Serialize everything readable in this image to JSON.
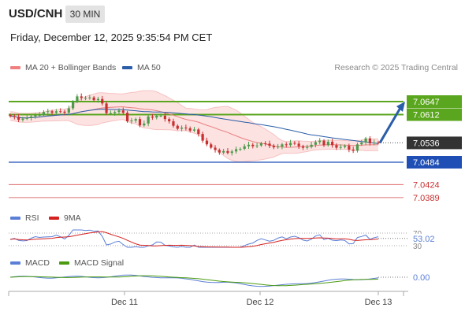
{
  "header": {
    "symbol": "USD/CNH",
    "interval": "30 MIN",
    "datetime": "Friday, December 12, 2025 9:35:54 PM CET"
  },
  "legend_main": [
    {
      "label": "MA 20 + Bollinger Bands",
      "color": "#f08080"
    },
    {
      "label": "MA 50",
      "color": "#2a5ea8"
    }
  ],
  "copyright": "Research © 2025 Trading Central",
  "colors": {
    "resistance": "#5aa61e",
    "support": "#1f4fb5",
    "minor_support": "#e07070",
    "current": "#333333",
    "bull": "#4a9b4a",
    "bear": "#c83030",
    "bands": "#fde2e2",
    "arrow": "#2a5ea8"
  },
  "price_levels": [
    {
      "name": "resistance-2",
      "value": "7.0647",
      "type": "resistance"
    },
    {
      "name": "resistance-1",
      "value": "7.0612",
      "type": "resistance"
    },
    {
      "name": "current-price",
      "value": "7.0536",
      "type": "current"
    },
    {
      "name": "support-1",
      "value": "7.0484",
      "type": "support"
    },
    {
      "name": "support-2",
      "value": "7.0424",
      "type": "minor_support"
    },
    {
      "name": "support-3",
      "value": "7.0389",
      "type": "minor_support"
    }
  ],
  "rsi": {
    "legend": [
      {
        "label": "RSI",
        "color": "#5b7fd6"
      },
      {
        "label": "9MA",
        "color": "#d62020"
      }
    ],
    "levels": [
      "70",
      "30"
    ],
    "value": "53.02"
  },
  "macd": {
    "legend": [
      {
        "label": "MACD",
        "color": "#5b7fd6"
      },
      {
        "label": "MACD Signal",
        "color": "#4a9b10"
      }
    ],
    "value": "0.00"
  },
  "xaxis": {
    "labels": [
      "Dec 11",
      "Dec 12",
      "Dec 13"
    ]
  },
  "chart_data": {
    "type": "candlestick",
    "price_range": [
      7.037,
      7.07
    ],
    "closes": [
      7.0608,
      7.0606,
      7.0598,
      7.0601,
      7.0603,
      7.0607,
      7.061,
      7.0611,
      7.0619,
      7.0621,
      7.0617,
      7.0621,
      7.062,
      7.0617,
      7.0629,
      7.0647,
      7.0661,
      7.0657,
      7.0657,
      7.0658,
      7.0651,
      7.0654,
      7.0642,
      7.0616,
      7.0616,
      7.0619,
      7.0623,
      7.0617,
      7.0594,
      7.0596,
      7.06,
      7.0583,
      7.0588,
      7.0607,
      7.0604,
      7.0609,
      7.0609,
      7.06,
      7.0594,
      7.0582,
      7.0574,
      7.0577,
      7.0575,
      7.0569,
      7.0572,
      7.056,
      7.0542,
      7.0532,
      7.0523,
      7.0517,
      7.051,
      7.0514,
      7.0509,
      7.0513,
      7.0519,
      7.052,
      7.0527,
      7.0531,
      7.0527,
      7.0529,
      7.0535,
      7.0534,
      7.0528,
      7.0524,
      7.0526,
      7.0532,
      7.053,
      7.0536,
      7.0534,
      7.0527,
      7.0523,
      7.0525,
      7.0531,
      7.0538,
      7.0542,
      7.053,
      7.0539,
      7.053,
      7.0523,
      7.0525,
      7.0528,
      7.0518,
      7.0515,
      7.0532,
      7.0537,
      7.0548,
      7.0535,
      7.0537,
      7.0536
    ],
    "rsi_value": 53.02,
    "macd_value": 0.0
  }
}
